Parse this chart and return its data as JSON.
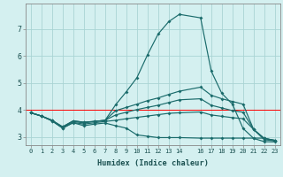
{
  "xlabel": "Humidex (Indice chaleur)",
  "bg_color": "#d4f0f0",
  "grid_color": "#aad4d4",
  "line_color": "#1a6b6b",
  "red_line_y": 4.0,
  "ylim": [
    2.7,
    7.95
  ],
  "xlim": [
    -0.5,
    23.5
  ],
  "y_ticks": [
    3,
    4,
    5,
    6,
    7
  ],
  "x_ticks": [
    0,
    1,
    2,
    3,
    4,
    5,
    6,
    7,
    8,
    9,
    10,
    11,
    12,
    13,
    14,
    16,
    17,
    18,
    19,
    20,
    21,
    22,
    23
  ],
  "curves": [
    {
      "x": [
        0,
        1,
        2,
        3,
        4,
        5,
        6,
        7,
        8,
        9,
        10,
        11,
        12,
        13,
        14,
        16,
        17,
        18,
        19,
        20,
        21,
        22,
        23
      ],
      "y": [
        3.9,
        3.78,
        3.62,
        3.35,
        3.58,
        3.52,
        3.58,
        3.62,
        4.2,
        4.68,
        5.2,
        6.05,
        6.82,
        7.28,
        7.55,
        7.42,
        5.45,
        4.62,
        4.22,
        3.32,
        2.95,
        2.83,
        2.82
      ]
    },
    {
      "x": [
        0,
        1,
        2,
        3,
        4,
        5,
        6,
        7,
        8,
        9,
        10,
        11,
        12,
        13,
        14,
        16,
        17,
        18,
        19,
        20,
        21,
        22,
        23
      ],
      "y": [
        3.9,
        3.78,
        3.62,
        3.38,
        3.6,
        3.55,
        3.58,
        3.62,
        3.98,
        4.1,
        4.22,
        4.35,
        4.45,
        4.58,
        4.7,
        4.85,
        4.55,
        4.42,
        4.32,
        4.22,
        3.28,
        2.95,
        2.88
      ]
    },
    {
      "x": [
        0,
        1,
        2,
        3,
        4,
        5,
        6,
        7,
        8,
        9,
        10,
        11,
        12,
        13,
        14,
        16,
        17,
        18,
        19,
        20,
        21,
        22,
        23
      ],
      "y": [
        3.9,
        3.78,
        3.62,
        3.38,
        3.6,
        3.55,
        3.58,
        3.62,
        3.82,
        3.92,
        4.02,
        4.1,
        4.18,
        4.28,
        4.38,
        4.42,
        4.18,
        4.08,
        3.98,
        3.92,
        3.28,
        2.95,
        2.88
      ]
    },
    {
      "x": [
        0,
        1,
        2,
        3,
        4,
        5,
        6,
        7,
        8,
        9,
        10,
        11,
        12,
        13,
        14,
        16,
        17,
        18,
        19,
        20,
        21,
        22,
        23
      ],
      "y": [
        3.9,
        3.78,
        3.6,
        3.33,
        3.54,
        3.48,
        3.53,
        3.58,
        3.62,
        3.68,
        3.73,
        3.78,
        3.83,
        3.88,
        3.9,
        3.93,
        3.82,
        3.77,
        3.72,
        3.68,
        3.28,
        2.9,
        2.86
      ]
    },
    {
      "x": [
        0,
        1,
        2,
        3,
        4,
        5,
        6,
        7,
        8,
        9,
        10,
        11,
        12,
        13,
        14,
        16,
        17,
        18,
        19,
        20,
        21,
        22,
        23
      ],
      "y": [
        3.9,
        3.78,
        3.6,
        3.33,
        3.53,
        3.42,
        3.48,
        3.52,
        3.42,
        3.33,
        3.08,
        3.03,
        2.98,
        2.98,
        2.98,
        2.96,
        2.96,
        2.96,
        2.96,
        2.96,
        2.96,
        2.96,
        2.86
      ]
    }
  ]
}
